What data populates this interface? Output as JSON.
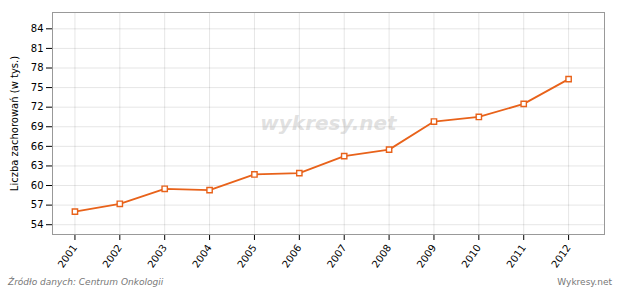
{
  "chart_data": {
    "type": "line",
    "x": [
      2001,
      2002,
      2003,
      2004,
      2005,
      2006,
      2007,
      2008,
      2009,
      2010,
      2011,
      2012
    ],
    "values": [
      56.0,
      57.2,
      59.5,
      59.3,
      61.7,
      61.9,
      64.5,
      65.5,
      69.8,
      70.5,
      72.5,
      76.3
    ],
    "color": "#e8621a",
    "marker": "square",
    "ylabel": "Liczba zachorowań (w tys.)",
    "xlim": [
      2000.5,
      2012.8
    ],
    "xticks": [
      2001,
      2002,
      2003,
      2004,
      2005,
      2006,
      2007,
      2008,
      2009,
      2010,
      2011,
      2012
    ],
    "ylim": [
      52.5,
      86.5
    ],
    "yticks": [
      54,
      57,
      60,
      63,
      66,
      69,
      72,
      75,
      78,
      81,
      84
    ],
    "grid": true,
    "annotation": "wykresy.net",
    "footnotes": [
      "Źródło danych:  Centrum Onkologii",
      "Wykresy.net"
    ]
  }
}
